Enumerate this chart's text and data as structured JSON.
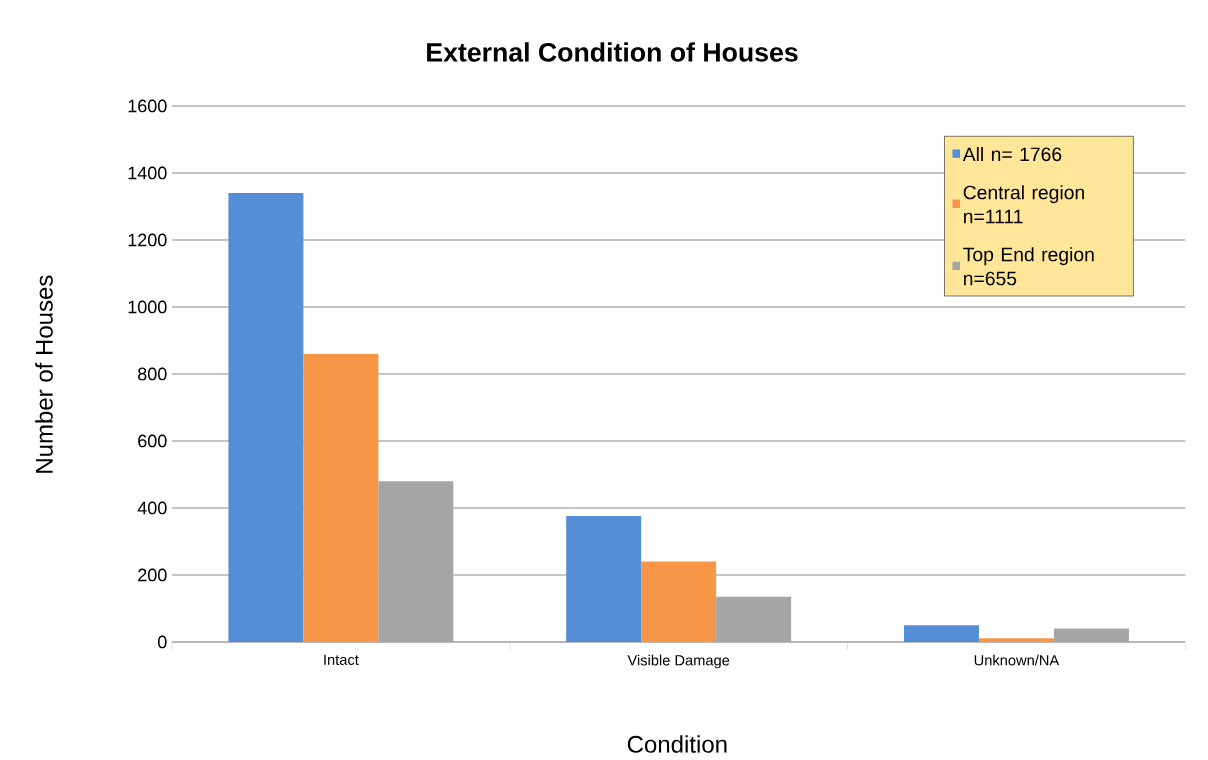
{
  "chart_data": {
    "type": "bar",
    "title": "External Condition of Houses",
    "xlabel": "Condition",
    "ylabel": "Number of Houses",
    "categories": [
      "Intact",
      "Visible Damage",
      "Unknown/NA"
    ],
    "series": [
      {
        "name": "All  n= 1766",
        "color": "#558ed5",
        "values": [
          1340,
          376,
          50
        ]
      },
      {
        "name": "Central region n=1111",
        "color": "#f79646",
        "values": [
          860,
          240,
          11
        ]
      },
      {
        "name": "Top End region n=655",
        "color": "#a5a5a5",
        "values": [
          480,
          135,
          40
        ]
      }
    ],
    "ylim": [
      0,
      1600
    ],
    "yticks": [
      0,
      200,
      400,
      600,
      800,
      1000,
      1200,
      1400,
      1600
    ],
    "grid": "y",
    "legend": "top right"
  }
}
